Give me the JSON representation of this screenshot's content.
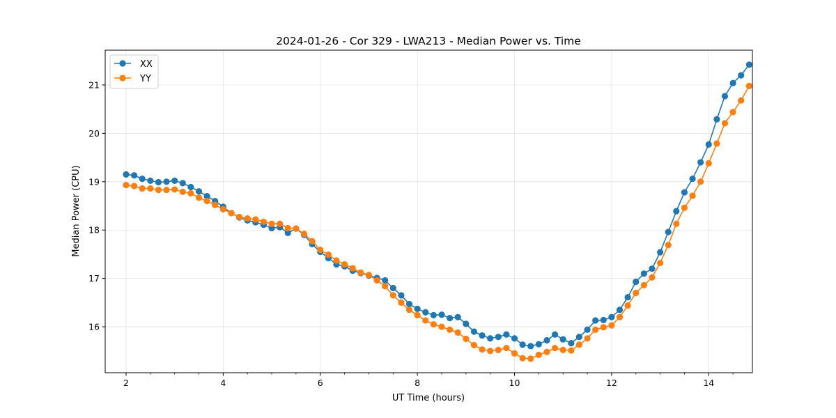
{
  "chart_data": {
    "type": "line",
    "title": "2024-01-26 - Cor 329 - LWA213 - Median Power vs. Time",
    "xlabel": "UT Time (hours)",
    "ylabel": "Median Power (CPU)",
    "xlim": [
      1.57,
      14.9
    ],
    "ylim": [
      15.05,
      21.72
    ],
    "xticks": [
      2,
      4,
      6,
      8,
      10,
      12,
      14
    ],
    "xtick_labels": [
      "2",
      "4",
      "6",
      "8",
      "10",
      "12",
      "14"
    ],
    "yticks": [
      16,
      17,
      18,
      19,
      20,
      21
    ],
    "ytick_labels": [
      "16",
      "17",
      "18",
      "19",
      "20",
      "21"
    ],
    "grid": true,
    "legend_position": "upper-left",
    "x": [
      2.0,
      2.167,
      2.333,
      2.5,
      2.667,
      2.833,
      3.0,
      3.167,
      3.333,
      3.5,
      3.667,
      3.833,
      4.0,
      4.167,
      4.333,
      4.5,
      4.667,
      4.833,
      5.0,
      5.167,
      5.333,
      5.5,
      5.667,
      5.833,
      6.0,
      6.167,
      6.333,
      6.5,
      6.667,
      6.833,
      7.0,
      7.167,
      7.333,
      7.5,
      7.667,
      7.833,
      8.0,
      8.167,
      8.333,
      8.5,
      8.667,
      8.833,
      9.0,
      9.167,
      9.333,
      9.5,
      9.667,
      9.833,
      10.0,
      10.167,
      10.333,
      10.5,
      10.667,
      10.833,
      11.0,
      11.167,
      11.333,
      11.5,
      11.667,
      11.833,
      12.0,
      12.167,
      12.333,
      12.5,
      12.667,
      12.833,
      13.0,
      13.167,
      13.333,
      13.5,
      13.667,
      13.833,
      14.0,
      14.167,
      14.333,
      14.5,
      14.667,
      14.833
    ],
    "series": [
      {
        "name": "XX",
        "color": "#1f77b4",
        "values": [
          19.15,
          19.13,
          19.06,
          19.02,
          18.99,
          19.0,
          19.02,
          18.97,
          18.89,
          18.8,
          18.7,
          18.6,
          18.48,
          18.35,
          18.26,
          18.2,
          18.16,
          18.11,
          18.04,
          18.06,
          17.94,
          18.03,
          17.9,
          17.71,
          17.55,
          17.42,
          17.29,
          17.25,
          17.16,
          17.11,
          17.06,
          17.01,
          16.96,
          16.8,
          16.65,
          16.47,
          16.37,
          16.3,
          16.24,
          16.25,
          16.18,
          16.2,
          16.06,
          15.9,
          15.82,
          15.76,
          15.79,
          15.84,
          15.76,
          15.63,
          15.6,
          15.64,
          15.72,
          15.84,
          15.74,
          15.66,
          15.79,
          15.94,
          16.13,
          16.14,
          16.2,
          16.35,
          16.61,
          16.93,
          17.1,
          17.2,
          17.54,
          17.96,
          18.39,
          18.78,
          19.06,
          19.4,
          19.77,
          20.29,
          20.77,
          21.04,
          21.2,
          21.42
        ]
      },
      {
        "name": "YY",
        "color": "#ff7f0e",
        "values": [
          18.93,
          18.91,
          18.86,
          18.86,
          18.83,
          18.83,
          18.84,
          18.79,
          18.76,
          18.67,
          18.6,
          18.52,
          18.43,
          18.35,
          18.27,
          18.24,
          18.22,
          18.17,
          18.13,
          18.13,
          18.04,
          18.03,
          17.92,
          17.77,
          17.59,
          17.49,
          17.37,
          17.29,
          17.21,
          17.12,
          17.07,
          16.96,
          16.84,
          16.65,
          16.5,
          16.35,
          16.24,
          16.13,
          16.05,
          16.0,
          15.94,
          15.88,
          15.75,
          15.62,
          15.53,
          15.5,
          15.52,
          15.56,
          15.45,
          15.35,
          15.34,
          15.42,
          15.48,
          15.56,
          15.52,
          15.51,
          15.63,
          15.76,
          15.94,
          15.99,
          16.03,
          16.2,
          16.44,
          16.7,
          16.86,
          17.02,
          17.32,
          17.69,
          18.13,
          18.46,
          18.71,
          19.0,
          19.38,
          19.79,
          20.21,
          20.44,
          20.68,
          20.98
        ]
      }
    ]
  }
}
